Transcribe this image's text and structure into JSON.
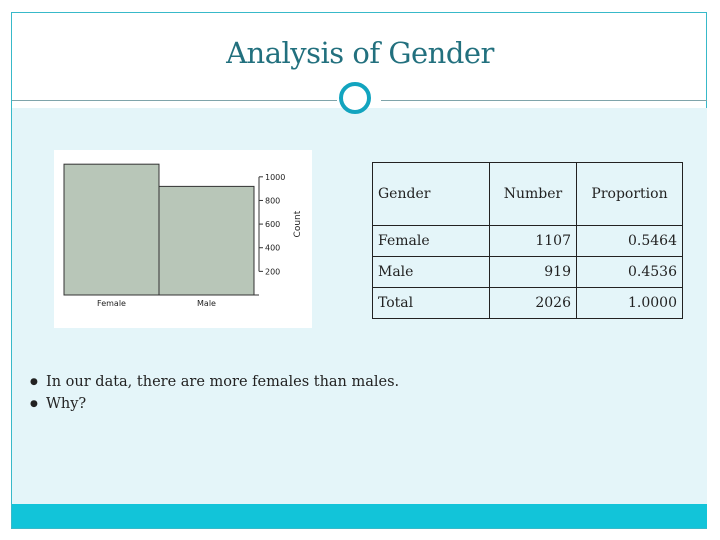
{
  "slide": {
    "title": "Analysis of Gender"
  },
  "chart_data": {
    "type": "bar",
    "categories": [
      "Female",
      "Male"
    ],
    "values": [
      1107,
      919
    ],
    "title": "",
    "xlabel": "",
    "ylabel": "Count",
    "ylim": [
      0,
      1100
    ],
    "yticks": [
      200,
      400,
      600,
      800,
      1000
    ],
    "ytick_labels": [
      "200",
      "400",
      "600",
      "800",
      "1000"
    ],
    "y_axis_side": "right",
    "bar_color": "#b8c6b8",
    "grid": false
  },
  "table": {
    "headers": [
      "Gender",
      "Number",
      "Proportion"
    ],
    "rows": [
      [
        "Female",
        "1107",
        "0.5464"
      ],
      [
        "Male",
        "919",
        "0.4536"
      ],
      [
        "Total",
        "2026",
        "1.0000"
      ]
    ]
  },
  "bullets": [
    "In our data, there are more females than males.",
    "Why?"
  ],
  "colors": {
    "title": "#22707e",
    "accent": "#12c4d9",
    "content_bg": "#e4f5f9"
  }
}
